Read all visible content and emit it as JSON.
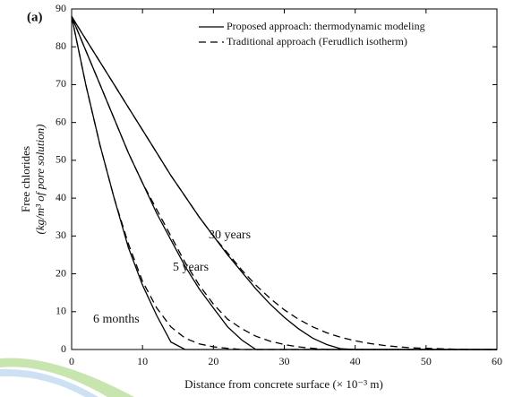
{
  "chart_data": {
    "type": "line",
    "panel_label": "(a)",
    "xlabel": "Distance from concrete surface (× 10⁻³ m)",
    "ylabel": [
      "Free chlorides",
      "(kg/m³ of pore solution)"
    ],
    "xlim": [
      0,
      60
    ],
    "ylim": [
      0,
      90
    ],
    "xticks": [
      0,
      10,
      20,
      30,
      40,
      50,
      60
    ],
    "yticks": [
      0,
      10,
      20,
      30,
      40,
      50,
      60,
      70,
      80,
      90
    ],
    "x": [
      0,
      2,
      4,
      6,
      8,
      10,
      12,
      14,
      16,
      18,
      20,
      22,
      24,
      26,
      28,
      30,
      32,
      34,
      36,
      38,
      40,
      42,
      44,
      46,
      48,
      50,
      52,
      54,
      56,
      58,
      60
    ],
    "curve_labels": [
      "6 months",
      "5 years",
      "30 years"
    ],
    "series": [
      {
        "name": "Proposed approach: thermodynamic modeling",
        "dashed": false,
        "color": "#000000",
        "curves": [
          [
            88,
            70,
            54,
            40,
            27,
            17,
            9,
            2,
            0,
            0,
            0,
            0,
            0,
            0,
            0,
            0,
            0,
            0,
            0,
            0,
            0,
            0,
            0,
            0,
            0,
            0,
            0,
            0,
            0,
            0,
            0
          ],
          [
            88,
            79,
            70,
            61,
            52,
            44,
            36,
            29,
            22,
            16,
            11,
            6,
            2.5,
            0,
            0,
            0,
            0,
            0,
            0,
            0,
            0,
            0,
            0,
            0,
            0,
            0,
            0,
            0,
            0,
            0,
            0
          ],
          [
            88,
            82,
            76,
            70,
            64,
            58,
            52,
            46,
            40.5,
            35,
            30,
            25,
            20.5,
            16,
            12,
            8.5,
            5.5,
            3,
            1.3,
            0.2,
            0,
            0,
            0,
            0,
            0,
            0,
            0,
            0,
            0,
            0,
            0
          ]
        ]
      },
      {
        "name": "Traditional approach (Ferudlich isotherm)",
        "dashed": true,
        "color": "#000000",
        "curves": [
          [
            88,
            70,
            54,
            40,
            28,
            18,
            11,
            6,
            3,
            1.5,
            0.7,
            0.3,
            0,
            0,
            0,
            0,
            0,
            0,
            0,
            0,
            0,
            0,
            0,
            0,
            0,
            0,
            0,
            0,
            0,
            0,
            0
          ],
          [
            88,
            79,
            70,
            61,
            52,
            44,
            37,
            30,
            23,
            17,
            12,
            8,
            5.5,
            3.5,
            2.2,
            1.3,
            0.7,
            0.3,
            0,
            0,
            0,
            0,
            0,
            0,
            0,
            0,
            0,
            0,
            0,
            0,
            0
          ],
          [
            88,
            82,
            76,
            70,
            64,
            58,
            52,
            46,
            40.5,
            35,
            30,
            25.5,
            21,
            17,
            13.5,
            10.5,
            8,
            6,
            4.4,
            3.2,
            2.3,
            1.6,
            1.1,
            0.7,
            0.45,
            0.3,
            0.2,
            0.1,
            0,
            0,
            0
          ]
        ]
      }
    ]
  }
}
